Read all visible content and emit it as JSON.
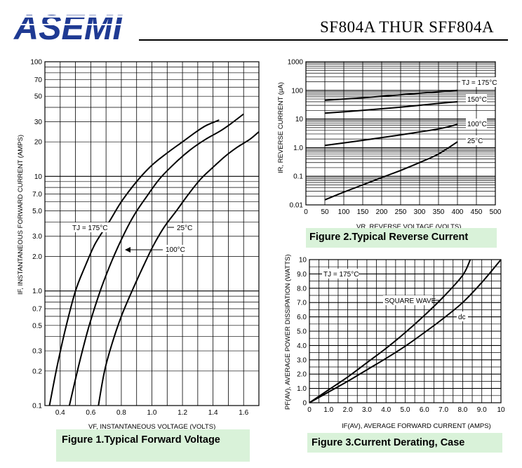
{
  "header": {
    "logo_text": "ASEMI",
    "title": "SF804A THUR SFF804A"
  },
  "captions": {
    "fig1": "Figure 1.Typical  Forward  Voltage",
    "fig2": "Figure 2.Typical  Reverse  Current",
    "fig3": "Figure 3.Current  Derating,  Case"
  },
  "colors": {
    "logo_blue": "#1f3a93",
    "caption_bg": "#d9f2d9",
    "grid": "#000000"
  },
  "chart_data": [
    {
      "id": "fig1",
      "type": "line",
      "xlabel": "VF, INSTANTANEOUS VOLTAGE (VOLTS)",
      "ylabel": "IF, INSTANTANEOUS FORWARD CURRENT (AMPS)",
      "xscale": "linear",
      "yscale": "log",
      "xlim": [
        0.3,
        1.7
      ],
      "ylim": [
        0.1,
        100
      ],
      "x_ticks": [
        "0.4",
        "0.6",
        "0.8",
        "1.0",
        "1.2",
        "1.4",
        "1.6"
      ],
      "x_tick_values": [
        0.4,
        0.6,
        0.8,
        1.0,
        1.2,
        1.4,
        1.6
      ],
      "y_ticks": [
        "100",
        "70",
        "50",
        "30",
        "20",
        "10",
        "7.0",
        "5.0",
        "3.0",
        "2.0",
        "1.0",
        "0.7",
        "0.5",
        "0.3",
        "0.2",
        "0.1"
      ],
      "y_tick_values": [
        100,
        70,
        50,
        30,
        20,
        10,
        7,
        5,
        3,
        2,
        1,
        0.7,
        0.5,
        0.3,
        0.2,
        0.1
      ],
      "grid": true,
      "series": [
        {
          "name": "TJ = 175°C",
          "x": [
            0.33,
            0.38,
            0.44,
            0.5,
            0.56,
            0.63,
            0.72,
            0.8,
            0.9,
            1.0,
            1.1,
            1.2,
            1.3,
            1.36,
            1.44
          ],
          "y": [
            0.1,
            0.22,
            0.5,
            1.0,
            1.6,
            2.6,
            4.0,
            6.0,
            9.0,
            12.5,
            16.0,
            20.0,
            25.0,
            28.0,
            31.0
          ]
        },
        {
          "name": "100°C",
          "x": [
            0.46,
            0.52,
            0.58,
            0.65,
            0.72,
            0.8,
            0.88,
            0.96,
            1.05,
            1.15,
            1.25,
            1.35,
            1.45,
            1.52,
            1.6
          ],
          "y": [
            0.1,
            0.22,
            0.45,
            0.9,
            1.6,
            2.8,
            4.5,
            6.5,
            9.5,
            13.0,
            17.0,
            21.0,
            25.0,
            29.0,
            35.0
          ]
        },
        {
          "name": "25°C",
          "x": [
            0.65,
            0.69,
            0.74,
            0.8,
            0.87,
            0.94,
            1.01,
            1.08,
            1.16,
            1.24,
            1.32,
            1.4,
            1.48,
            1.56,
            1.64,
            1.7
          ],
          "y": [
            0.1,
            0.2,
            0.35,
            0.6,
            1.0,
            1.6,
            2.5,
            3.6,
            5.0,
            7.0,
            9.5,
            12.0,
            15.0,
            18.0,
            21.0,
            24.5
          ]
        }
      ],
      "annotations": [
        "TJ = 175°C",
        "100°C",
        "25°C"
      ]
    },
    {
      "id": "fig2",
      "type": "line",
      "xlabel": "VR, REVERSE VOLTAGE (VOLTS)",
      "ylabel": "IR, REVERSE CURRENT (µA)",
      "xscale": "linear",
      "yscale": "log",
      "xlim": [
        0,
        500
      ],
      "ylim": [
        0.01,
        1000
      ],
      "x_ticks": [
        "0",
        "50",
        "100",
        "150",
        "200",
        "250",
        "300",
        "350",
        "400",
        "450",
        "500"
      ],
      "x_tick_values": [
        0,
        50,
        100,
        150,
        200,
        250,
        300,
        350,
        400,
        450,
        500
      ],
      "y_ticks": [
        "1000",
        "100",
        "10",
        "1.0",
        "0.1",
        "0.01"
      ],
      "y_tick_values": [
        1000,
        100,
        10,
        1,
        0.1,
        0.01
      ],
      "grid": true,
      "series": [
        {
          "name": "TJ = 175°C",
          "x": [
            50,
            150,
            250,
            350,
            400
          ],
          "y": [
            45,
            55,
            70,
            90,
            100
          ]
        },
        {
          "name": "150°C",
          "x": [
            50,
            150,
            250,
            350,
            400
          ],
          "y": [
            16,
            20,
            26,
            35,
            40
          ]
        },
        {
          "name": "100°C",
          "x": [
            50,
            150,
            250,
            350,
            400
          ],
          "y": [
            1.2,
            1.8,
            2.8,
            4.5,
            6.5
          ]
        },
        {
          "name": "25°C",
          "x": [
            50,
            100,
            150,
            200,
            250,
            300,
            350,
            400
          ],
          "y": [
            0.015,
            0.028,
            0.05,
            0.09,
            0.16,
            0.3,
            0.6,
            1.6
          ]
        }
      ],
      "annotations": [
        "TJ = 175°C",
        "150°C",
        "100°C",
        "25°C"
      ]
    },
    {
      "id": "fig3",
      "type": "line",
      "xlabel": "IF(AV), AVERAGE FORWARD CURRENT (AMPS)",
      "ylabel": "PF(AV), AVERAGE POWER DISSIPATION (WATTS)",
      "xscale": "linear",
      "yscale": "linear",
      "xlim": [
        0,
        10
      ],
      "ylim": [
        0,
        10
      ],
      "x_ticks": [
        "0",
        "1.0",
        "2.0",
        "3.0",
        "4.0",
        "5.0",
        "6.0",
        "7.0",
        "8.0",
        "9.0",
        "10"
      ],
      "x_tick_values": [
        0,
        1,
        2,
        3,
        4,
        5,
        6,
        7,
        8,
        9,
        10
      ],
      "y_ticks": [
        "10",
        "9.0",
        "8.0",
        "7.0",
        "6.0",
        "5.0",
        "4.0",
        "3.0",
        "2.0",
        "1.0",
        "0"
      ],
      "y_tick_values": [
        10,
        9,
        8,
        7,
        6,
        5,
        4,
        3,
        2,
        1,
        0
      ],
      "grid": true,
      "series": [
        {
          "name": "SQUARE WAVE",
          "x": [
            0,
            1,
            2,
            3,
            4,
            5,
            6,
            7,
            8,
            8.4
          ],
          "y": [
            0,
            0.9,
            1.8,
            2.8,
            3.8,
            4.9,
            6.1,
            7.4,
            8.9,
            10
          ]
        },
        {
          "name": "dc",
          "x": [
            0,
            1,
            2,
            3,
            4,
            5,
            6,
            7,
            8,
            9,
            10
          ],
          "y": [
            0,
            0.75,
            1.5,
            2.3,
            3.1,
            3.95,
            4.9,
            5.9,
            7.0,
            8.4,
            10
          ]
        }
      ],
      "annotations": [
        "TJ = 175°C",
        "SQUARE WAVE",
        "dc"
      ]
    }
  ]
}
